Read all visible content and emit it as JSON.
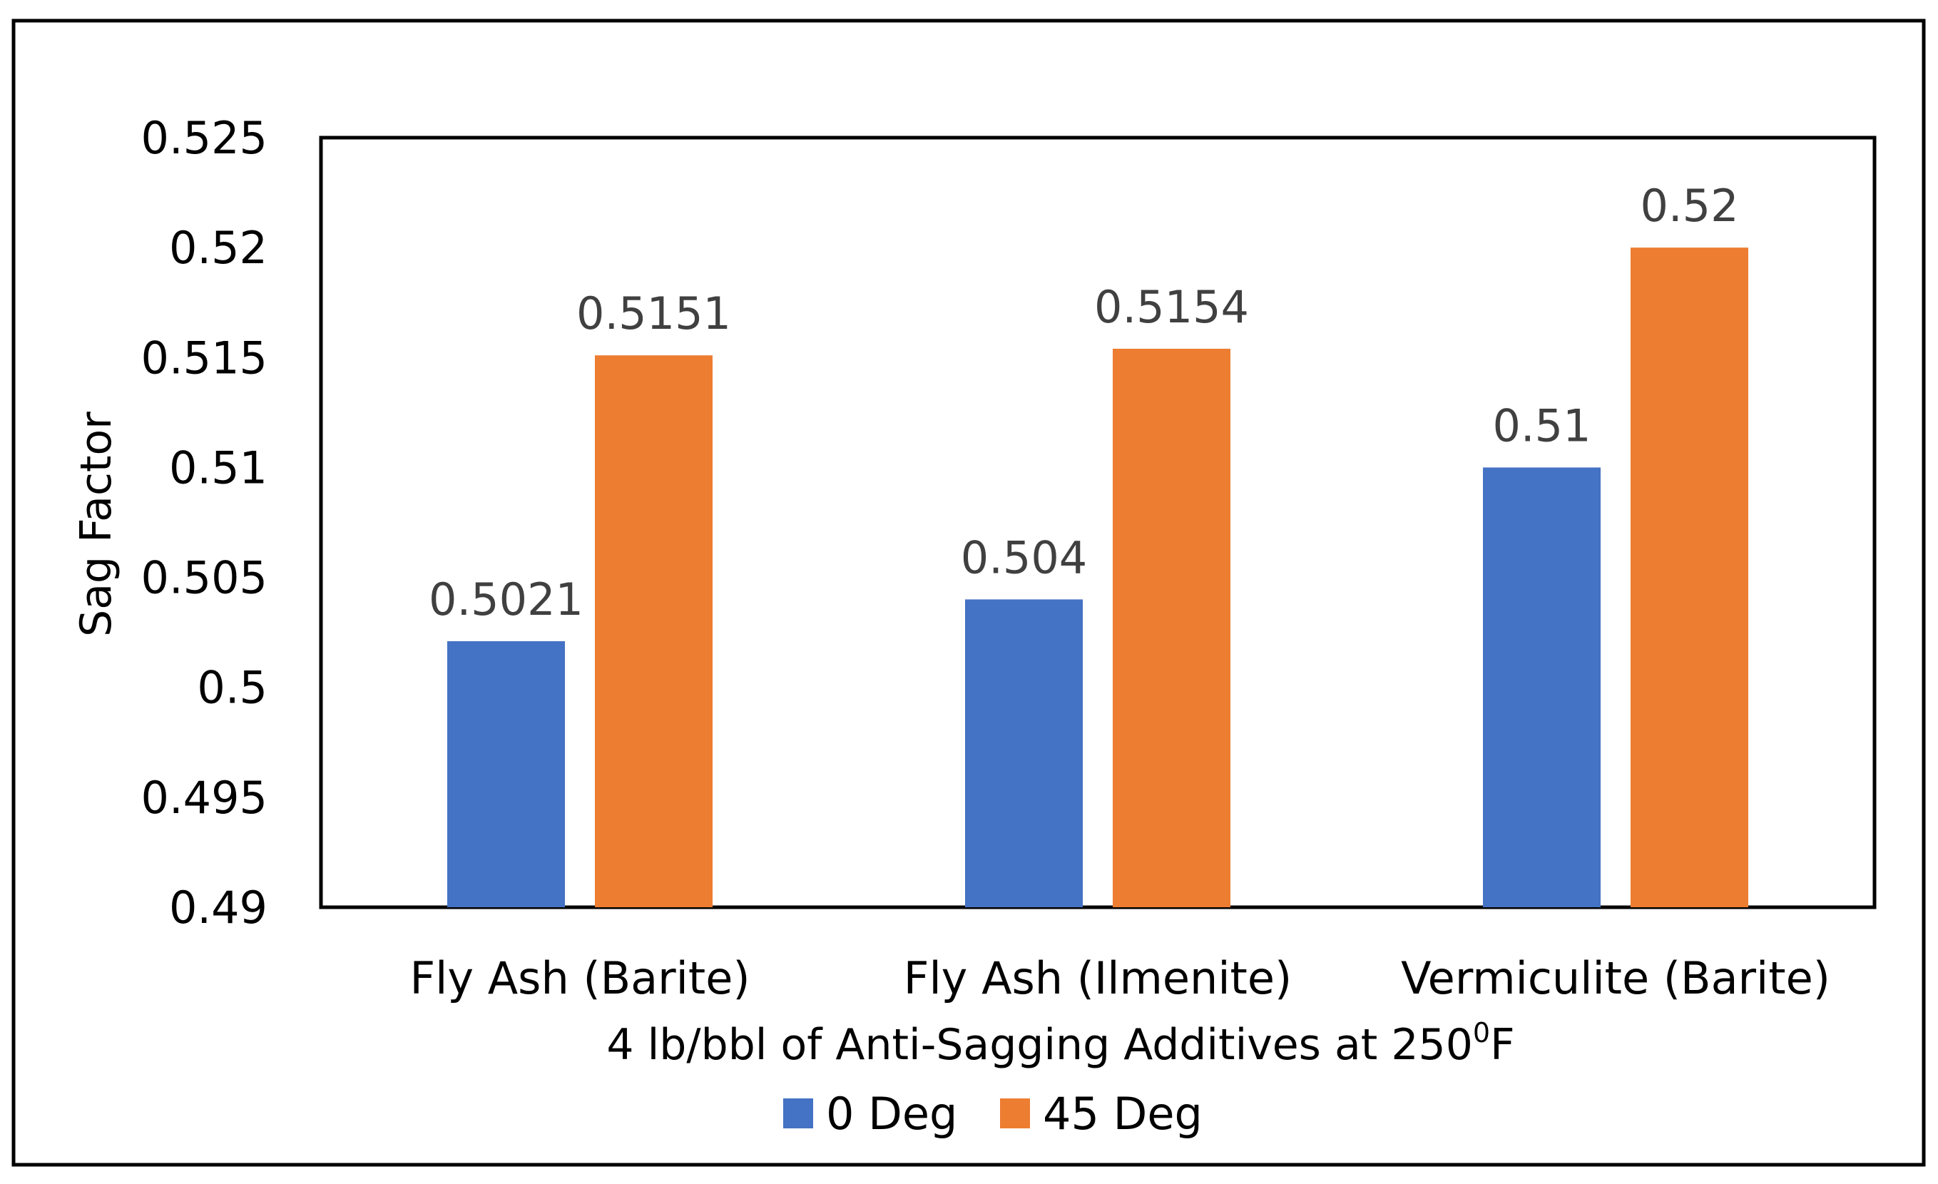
{
  "chart_data": {
    "type": "bar",
    "title": "",
    "categories": [
      "Fly Ash (Barite)",
      "Fly Ash (Ilmenite)",
      "Vermiculite (Barite)"
    ],
    "series": [
      {
        "name": "0 Deg",
        "color": "#4472C4",
        "values": [
          0.5021,
          0.504,
          0.51
        ],
        "labels": [
          "0.5021",
          "0.504",
          "0.51"
        ]
      },
      {
        "name": "45 Deg",
        "color": "#ED7D31",
        "values": [
          0.5151,
          0.5154,
          0.52
        ],
        "labels": [
          "0.5151",
          "0.5154",
          "0.52"
        ]
      }
    ],
    "xlabel": "4 lb/bbl of Anti-Sagging Additives at 250",
    "xlabel_superscript": "0",
    "xlabel_suffix": "F",
    "ylabel": "Sag Factor",
    "ylim": [
      0.49,
      0.525
    ],
    "yticks": [
      "0.49",
      "0.495",
      "0.5",
      "0.505",
      "0.51",
      "0.515",
      "0.52",
      "0.525"
    ],
    "grid": false,
    "legend_position": "bottom"
  }
}
